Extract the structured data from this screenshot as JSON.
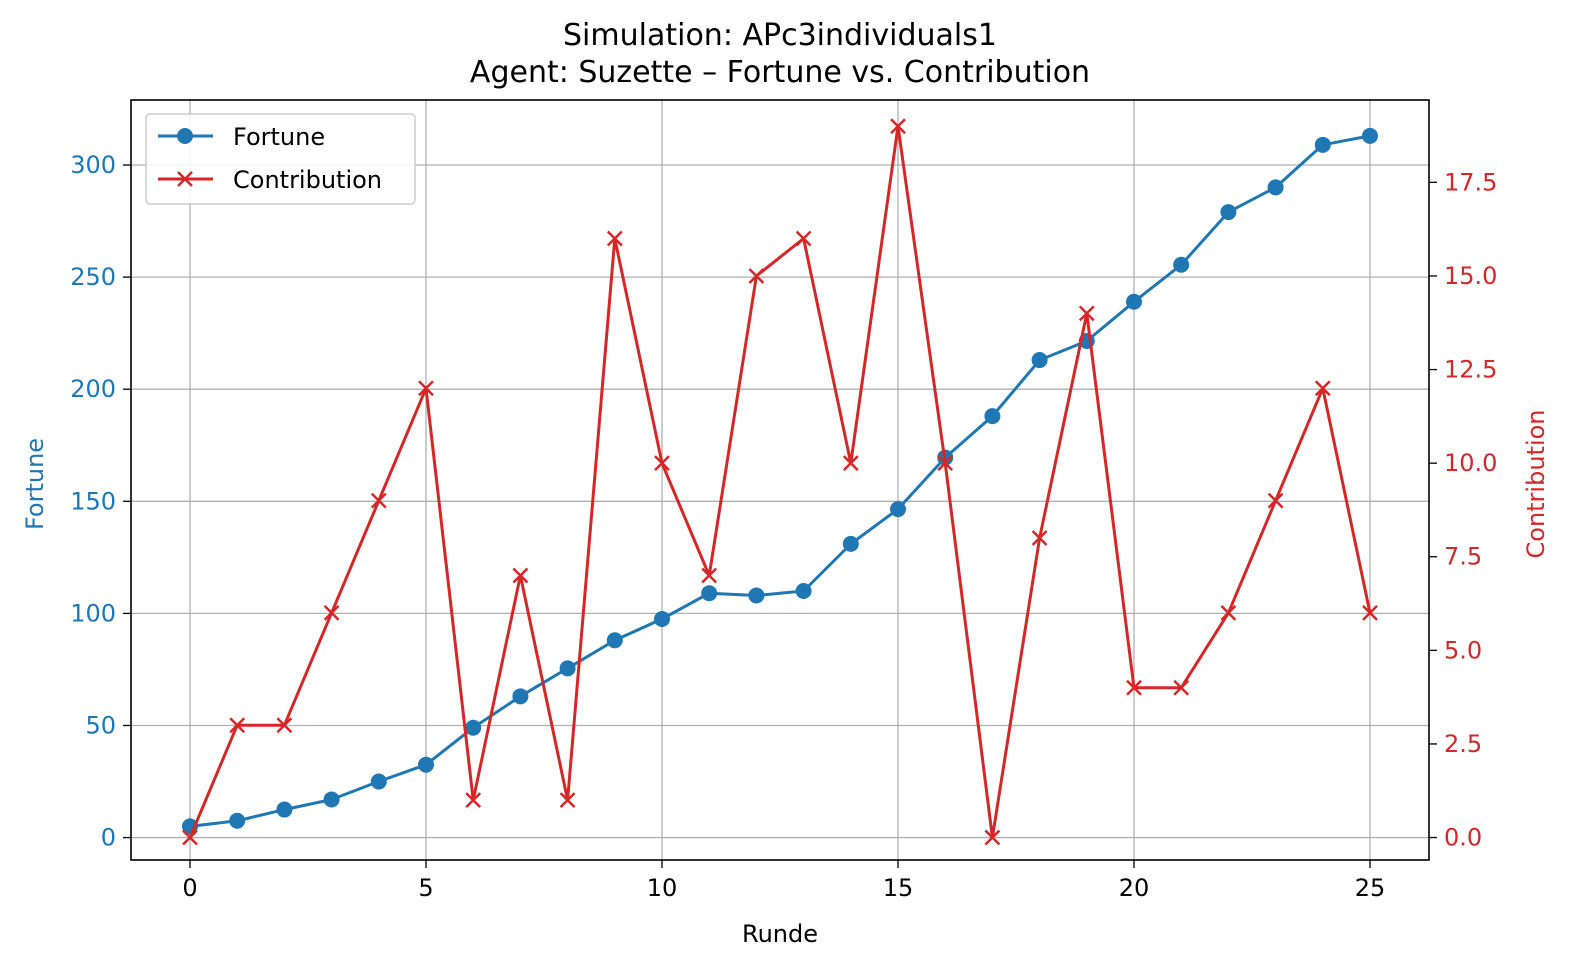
{
  "chart_data": {
    "type": "line",
    "title_line1": "Simulation: APc3individuals1",
    "title_line2": "Agent: Suzette – Fortune vs. Contribution",
    "xlabel": "Runde",
    "ylabel_left": "Fortune",
    "ylabel_right": "Contribution",
    "xlim": [
      -1.25,
      26.25
    ],
    "ylim_left": [
      -10,
      329
    ],
    "ylim_right": [
      -0.6,
      19.7
    ],
    "x_ticks": [
      "0",
      "5",
      "10",
      "15",
      "20",
      "25"
    ],
    "y_left_ticks": [
      "0",
      "50",
      "100",
      "150",
      "200",
      "250",
      "300"
    ],
    "y_right_ticks": [
      "0.0",
      "2.5",
      "5.0",
      "7.5",
      "10.0",
      "12.5",
      "15.0",
      "17.5"
    ],
    "grid": true,
    "legend_position": "top-left",
    "x": [
      0,
      1,
      2,
      3,
      4,
      5,
      6,
      7,
      8,
      9,
      10,
      11,
      12,
      13,
      14,
      15,
      16,
      17,
      18,
      19,
      20,
      21,
      22,
      23,
      24,
      25
    ],
    "series": [
      {
        "name": "Fortune",
        "axis": "left",
        "marker": "circle",
        "color": "#1f77b4",
        "values": [
          5,
          7.5,
          12.5,
          17,
          25,
          32.5,
          49,
          63,
          75.5,
          88,
          97.5,
          109,
          108,
          110,
          131,
          146.5,
          169.5,
          188,
          213,
          221.5,
          239,
          255.5,
          279,
          290,
          309,
          313
        ]
      },
      {
        "name": "Contribution",
        "axis": "right",
        "marker": "x",
        "color": "#d62728",
        "values": [
          0,
          3,
          3,
          6,
          9,
          12,
          1,
          7,
          1,
          16,
          10,
          7,
          15,
          16,
          10,
          19,
          10,
          0,
          8,
          14,
          4,
          4,
          6,
          9,
          12,
          6
        ]
      }
    ]
  }
}
